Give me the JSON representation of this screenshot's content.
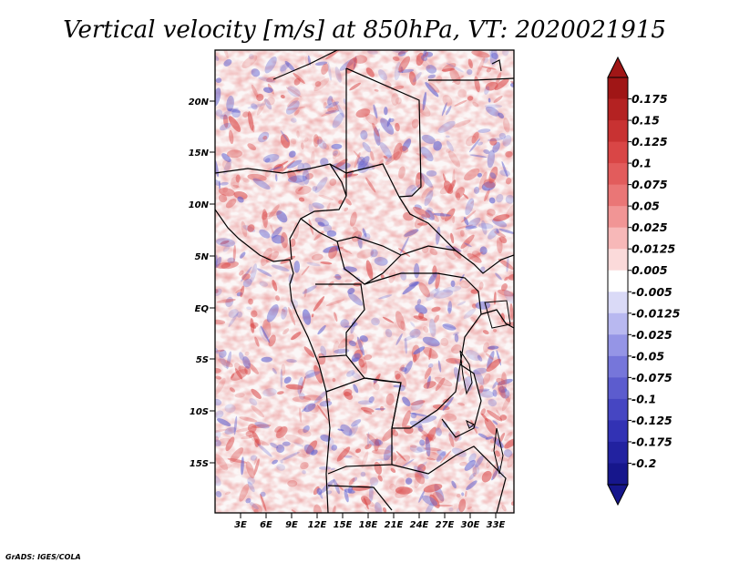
{
  "title": "Vertical velocity [m/s] at 850hPa, VT: 2020021915",
  "credit": "GrADS: IGES/COLA",
  "lat_labels": [
    "20N",
    "15N",
    "10N",
    "5N",
    "EQ",
    "5S",
    "10S",
    "15S"
  ],
  "lon_labels": [
    "3E",
    "6E",
    "9E",
    "12E",
    "15E",
    "18E",
    "21E",
    "24E",
    "27E",
    "30E",
    "33E"
  ],
  "colorbar": {
    "labels": [
      "0.175",
      "0.15",
      "0.125",
      "0.1",
      "0.075",
      "0.05",
      "0.025",
      "0.0125",
      "0.005",
      "-0.005",
      "-0.0125",
      "-0.025",
      "-0.05",
      "-0.075",
      "-0.1",
      "-0.125",
      "-0.175",
      "-0.2"
    ],
    "colors": [
      "#a01616",
      "#b42222",
      "#c83232",
      "#d94646",
      "#e25c5c",
      "#ea7676",
      "#f19595",
      "#f7b8b8",
      "#fbdada",
      "#ffffff",
      "#dadaf7",
      "#b8b8f0",
      "#9595e6",
      "#7676da",
      "#5c5cce",
      "#4646c2",
      "#3232b4",
      "#2222a0",
      "#16168c"
    ]
  },
  "map": {
    "lat_range": [
      -19,
      24
    ],
    "lon_range": [
      0,
      35
    ],
    "background": "#ffffff",
    "positive_color": "#d94646",
    "negative_color": "#5c5cce"
  }
}
